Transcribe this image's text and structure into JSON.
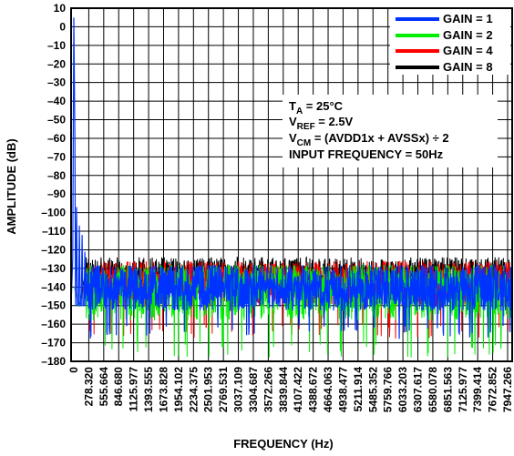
{
  "chart_data": {
    "type": "line",
    "xlabel": "FREQUENCY (Hz)",
    "ylabel": "AMPLITUDE (dB)",
    "xlim": [
      0,
      8000
    ],
    "ylim": [
      -180,
      10
    ],
    "grid": true,
    "legend_position": "top-right",
    "x_tick_labels": [
      "0",
      "278.320",
      "555.664",
      "846.680",
      "1125.977",
      "1393.555",
      "1673.828",
      "1954.102",
      "2234.375",
      "2501.953",
      "2769.531",
      "3037.109",
      "3304.687",
      "3572.266",
      "3839.844",
      "4107.422",
      "4388.672",
      "4664.063",
      "4938.477",
      "5211.914",
      "5485.352",
      "5759.766",
      "6033.203",
      "6307.617",
      "6580.078",
      "6851.563",
      "7125.977",
      "7399.414",
      "7672.852",
      "7947.266"
    ],
    "y_tick_labels": [
      "10",
      "0",
      "–10",
      "–20",
      "–30",
      "–40",
      "–50",
      "–60",
      "–70",
      "–80",
      "–90",
      "–100",
      "–110",
      "–120",
      "–130",
      "–140",
      "–150",
      "–160",
      "–170",
      "–180"
    ],
    "series": [
      {
        "name": "GAIN = 1",
        "color": "#0033ff",
        "noise_floor_db": -142,
        "noise_top_db": -128,
        "noise_bottom_db": -160,
        "fundamental": {
          "x": 50,
          "y": 5
        },
        "harmonics": [
          {
            "x": 100,
            "y": -97
          },
          {
            "x": 150,
            "y": -107
          },
          {
            "x": 200,
            "y": -112
          },
          {
            "x": 250,
            "y": -121
          }
        ]
      },
      {
        "name": "GAIN = 2",
        "color": "#00ee00",
        "noise_floor_db": -140,
        "noise_top_db": -128,
        "noise_bottom_db": -170
      },
      {
        "name": "GAIN = 4",
        "color": "#ff0000",
        "noise_floor_db": -137,
        "noise_top_db": -126,
        "noise_bottom_db": -160
      },
      {
        "name": "GAIN = 8",
        "color": "#000000",
        "noise_floor_db": -133,
        "noise_top_db": -124,
        "noise_bottom_db": -140
      }
    ]
  },
  "annotation": {
    "ta_main": "T",
    "ta_sub": "A",
    "ta_rest": " = 25°C",
    "vref_main": "V",
    "vref_sub": "REF",
    "vref_rest": " = 2.5V",
    "vcm_main": "V",
    "vcm_sub": "CM",
    "vcm_rest": " = (AVDD1x + AVSSx) ÷ 2",
    "input_freq": "INPUT FREQUENCY = 50Hz"
  }
}
